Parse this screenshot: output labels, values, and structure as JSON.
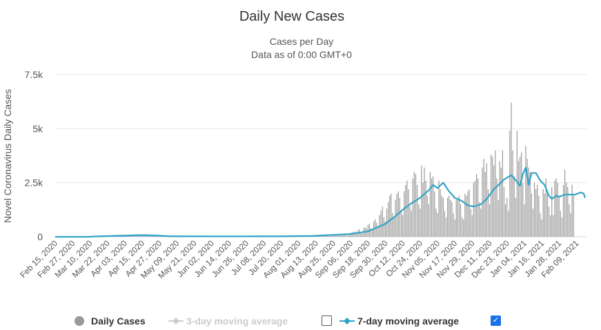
{
  "chart_data": {
    "type": "bar+line",
    "title": "Daily New Cases",
    "subtitle_lines": [
      "Cases per Day",
      "Data as of 0:00 GMT+0"
    ],
    "ylabel": "Novel Coronavirus Daily Cases",
    "xlabel": "",
    "ylim": [
      0,
      7500
    ],
    "yticks": [
      0,
      2500,
      5000,
      7500
    ],
    "ytick_labels": [
      "0",
      "2.5k",
      "5k",
      "7.5k"
    ],
    "grid": true,
    "start_date": "2020-02-15",
    "xtick_labels": [
      "Feb 15, 2020",
      "Feb 27, 2020",
      "Mar 10, 2020",
      "Mar 22, 2020",
      "Apr 03, 2020",
      "Apr 15, 2020",
      "Apr 27, 2020",
      "May 09, 2020",
      "May 21, 2020",
      "Jun 02, 2020",
      "Jun 14, 2020",
      "Jun 26, 2020",
      "Jul 08, 2020",
      "Jul 20, 2020",
      "Aug 01, 2020",
      "Aug 13, 2020",
      "Aug 25, 2020",
      "Sep 06, 2020",
      "Sep 18, 2020",
      "Sep 30, 2020",
      "Oct 12, 2020",
      "Oct 24, 2020",
      "Nov 05, 2020",
      "Nov 17, 2020",
      "Nov 29, 2020",
      "Dec 11, 2020",
      "Dec 23, 2020",
      "Jan 04, 2021",
      "Jan 16, 2021",
      "Jan 28, 2021",
      "Feb 09, 2021"
    ],
    "series": [
      {
        "name": "Daily Cases",
        "type": "bar",
        "color": "#999999",
        "values": [
          0,
          0,
          0,
          0,
          0,
          0,
          0,
          0,
          0,
          0,
          0,
          0,
          0,
          0,
          0,
          0,
          0,
          0,
          0,
          0,
          0,
          0,
          0,
          0,
          5,
          8,
          10,
          15,
          12,
          20,
          25,
          30,
          28,
          35,
          40,
          38,
          45,
          50,
          42,
          55,
          60,
          48,
          52,
          65,
          70,
          58,
          62,
          75,
          80,
          66,
          70,
          85,
          90,
          72,
          78,
          95,
          88,
          70,
          74,
          80,
          76,
          60,
          55,
          50,
          48,
          40,
          42,
          38,
          35,
          30,
          28,
          25,
          24,
          22,
          20,
          18,
          20,
          25,
          18,
          30,
          22,
          15,
          12,
          20,
          25,
          18,
          30,
          22,
          15,
          12,
          20,
          25,
          18,
          30,
          22,
          15,
          12,
          20,
          25,
          18,
          30,
          22,
          15,
          12,
          20,
          25,
          18,
          30,
          22,
          15,
          12,
          20,
          25,
          18,
          30,
          22,
          15,
          12,
          20,
          25,
          18,
          30,
          22,
          15,
          12,
          20,
          25,
          18,
          30,
          22,
          15,
          12,
          22,
          28,
          20,
          32,
          25,
          18,
          14,
          24,
          30,
          22,
          34,
          26,
          18,
          15,
          26,
          32,
          24,
          36,
          28,
          20,
          16,
          30,
          36,
          28,
          40,
          32,
          22,
          18,
          34,
          40,
          30,
          44,
          36,
          26,
          20,
          38,
          44,
          34,
          48,
          40,
          28,
          24,
          40,
          50,
          60,
          45,
          70,
          80,
          55,
          40,
          65,
          75,
          90,
          60,
          85,
          100,
          70,
          50,
          90,
          110,
          95,
          120,
          80,
          60,
          100,
          130,
          140,
          115,
          150,
          90,
          70,
          160,
          180,
          200,
          220,
          250,
          180,
          300,
          350,
          200,
          150,
          400,
          450,
          380,
          550,
          600,
          400,
          300,
          700,
          800,
          650,
          500,
          1000,
          1200,
          1400,
          900,
          700,
          1300,
          1600,
          1900,
          2000,
          1100,
          900,
          1700,
          2000,
          2100,
          1800,
          1200,
          1000,
          2100,
          2400,
          2600,
          2200,
          1400,
          1200,
          2700,
          3000,
          2900,
          2400,
          1500,
          1300,
          3300,
          2500,
          3200,
          2600,
          1900,
          1500,
          3000,
          2700,
          2800,
          2100,
          1300,
          1100,
          2600,
          2200,
          1900,
          1800,
          1200,
          900,
          1800,
          1900,
          1700,
          1600,
          1100,
          800,
          1700,
          1800,
          1900,
          1500,
          900,
          800,
          2000,
          1900,
          2100,
          2200,
          1300,
          1000,
          2500,
          2600,
          2900,
          2700,
          1600,
          1300,
          3200,
          3600,
          3000,
          3400,
          2200,
          1500,
          3800,
          3700,
          3300,
          4000,
          2700,
          1700,
          3500,
          3200,
          4000,
          2300,
          1500,
          1800,
          1200,
          4900,
          6200,
          4000,
          2800,
          1800,
          4900,
          3500,
          3700,
          3900,
          2500,
          1500,
          4200,
          3600,
          3200,
          3000,
          2000,
          1300,
          2500,
          2200,
          2400,
          1900,
          1100,
          800,
          2200,
          2000,
          2700,
          2100,
          1400,
          1000,
          2300,
          1000,
          2600,
          2700,
          2500,
          1900,
          1200,
          900,
          2400,
          3100,
          2500,
          2300,
          1500,
          1100,
          2400,
          1900
        ]
      },
      {
        "name": "3-day moving average",
        "type": "line",
        "visible": false,
        "color": "#cccccc"
      },
      {
        "name": "7-day moving average",
        "type": "line",
        "visible": true,
        "color": "#2fa4c8",
        "points": [
          [
            "2020-02-15",
            0
          ],
          [
            "2020-03-09",
            0
          ],
          [
            "2020-03-15",
            20
          ],
          [
            "2020-03-25",
            40
          ],
          [
            "2020-04-05",
            60
          ],
          [
            "2020-04-15",
            80
          ],
          [
            "2020-04-25",
            60
          ],
          [
            "2020-05-05",
            25
          ],
          [
            "2020-06-15",
            20
          ],
          [
            "2020-07-20",
            25
          ],
          [
            "2020-08-10",
            40
          ],
          [
            "2020-08-25",
            90
          ],
          [
            "2020-09-06",
            130
          ],
          [
            "2020-09-18",
            250
          ],
          [
            "2020-09-25",
            450
          ],
          [
            "2020-09-30",
            600
          ],
          [
            "2020-10-06",
            900
          ],
          [
            "2020-10-12",
            1250
          ],
          [
            "2020-10-18",
            1550
          ],
          [
            "2020-10-24",
            1800
          ],
          [
            "2020-10-30",
            2150
          ],
          [
            "2020-11-02",
            2400
          ],
          [
            "2020-11-05",
            2250
          ],
          [
            "2020-11-09",
            2500
          ],
          [
            "2020-11-13",
            2100
          ],
          [
            "2020-11-17",
            1800
          ],
          [
            "2020-11-22",
            1650
          ],
          [
            "2020-11-26",
            1450
          ],
          [
            "2020-11-30",
            1400
          ],
          [
            "2020-12-05",
            1500
          ],
          [
            "2020-12-09",
            1750
          ],
          [
            "2020-12-14",
            2200
          ],
          [
            "2020-12-18",
            2450
          ],
          [
            "2020-12-21",
            2650
          ],
          [
            "2020-12-26",
            2850
          ],
          [
            "2020-12-30",
            2550
          ],
          [
            "2021-01-01",
            2350
          ],
          [
            "2021-01-03",
            2900
          ],
          [
            "2021-01-05",
            3200
          ],
          [
            "2021-01-07",
            2400
          ],
          [
            "2021-01-09",
            2950
          ],
          [
            "2021-01-12",
            2950
          ],
          [
            "2021-01-15",
            2600
          ],
          [
            "2021-01-18",
            2400
          ],
          [
            "2021-01-21",
            1900
          ],
          [
            "2021-01-23",
            1750
          ],
          [
            "2021-01-26",
            1900
          ],
          [
            "2021-01-28",
            1850
          ],
          [
            "2021-02-01",
            1950
          ],
          [
            "2021-02-08",
            1950
          ],
          [
            "2021-02-12",
            2050
          ],
          [
            "2021-02-14",
            2000
          ],
          [
            "2021-02-15",
            1800
          ]
        ]
      }
    ],
    "legend": "bottom-center"
  },
  "legend": {
    "daily": "Daily Cases",
    "ma3": "3-day moving average",
    "ma7": "7-day moving average",
    "ma3_checked": false,
    "ma7_checked": true,
    "check_mark": "✓"
  }
}
